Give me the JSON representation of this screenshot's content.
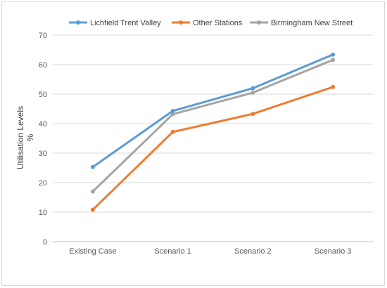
{
  "chart_data": {
    "type": "line",
    "title": "",
    "xlabel": "",
    "ylabel": [
      "Utilisation Levels",
      "%"
    ],
    "categories": [
      "Existing Case",
      "Scenario 1",
      "Scenario 2",
      "Scenario 3"
    ],
    "ylim": [
      0,
      70
    ],
    "yticks": [
      0,
      10,
      20,
      30,
      40,
      50,
      60,
      70
    ],
    "grid": true,
    "legend_position": "top",
    "series": [
      {
        "name": "Lichfield Trent Valley",
        "color": "#5b9bd5",
        "values": [
          25.3,
          44.3,
          52.0,
          63.4
        ]
      },
      {
        "name": "Other Stations",
        "color": "#ed7d31",
        "values": [
          10.8,
          37.2,
          43.3,
          52.4
        ]
      },
      {
        "name": "Birmingham New Street",
        "color": "#a5a5a5",
        "values": [
          17.0,
          43.2,
          50.5,
          61.6
        ]
      }
    ]
  }
}
